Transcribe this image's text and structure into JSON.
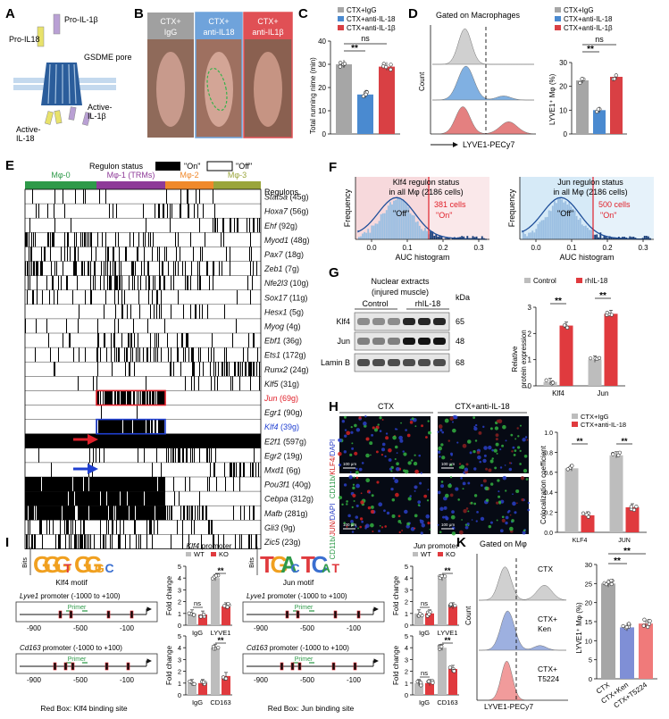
{
  "panel_letters": [
    "A",
    "B",
    "C",
    "D",
    "E",
    "F",
    "G",
    "H",
    "I",
    "J",
    "K"
  ],
  "colors": {
    "igg": "#a6a6a6",
    "anti": "#4a8ad0",
    "beta": "#d94044",
    "wt": "#bdbdbd",
    "ko": "#e03a3e",
    "green": "#2e9a49",
    "purple": "#8e3a98",
    "orange": "#f0892b",
    "olive": "#9aa53b",
    "pink_bg": "#f7d9dc",
    "blue_bg": "#d6eaf7"
  },
  "panel_a": {
    "pro_il18": "Pro-IL18",
    "pro_il1b": "Pro-IL-1β",
    "pore": "GSDME pore",
    "act_il18_1": "Active-",
    "act_il18_2": "IL-18",
    "act_il1b_1": "Active-",
    "act_il1b_2": "IL-1β"
  },
  "panel_b": {
    "labels": [
      [
        "CTX+",
        "IgG"
      ],
      [
        "CTX+",
        "anti-IL18"
      ],
      [
        "CTX+",
        "anti-IL1β"
      ]
    ]
  },
  "panel_c": {
    "ylabel": "Total running nime (min)",
    "legend": [
      "CTX+IgG",
      "CTX+anti-IL-18",
      "CTX+anti-IL-1β"
    ],
    "sig": [
      "ns",
      "**"
    ],
    "chart_data": {
      "type": "bar",
      "categories": [
        "CTX+IgG",
        "CTX+anti-IL-18",
        "CTX+anti-IL-1β"
      ],
      "values": [
        30,
        17,
        29
      ],
      "ylim": [
        0,
        40
      ],
      "yticks": [
        0,
        10,
        20,
        30,
        40
      ]
    }
  },
  "panel_d": {
    "title": "Gated on Macrophages",
    "ylabel": "Count",
    "xlabel": "LYVE1-PECy7",
    "ylabel2": "LYVE1⁺ Mφ (%)",
    "legend": [
      "CTX+IgG",
      "CTX+anti-IL-18",
      "CTX+anti-IL-1β"
    ],
    "sig": [
      "ns",
      "**"
    ],
    "chart_data": {
      "type": "bar",
      "categories": [
        "CTX+IgG",
        "CTX+anti-IL-18",
        "CTX+anti-IL-1β"
      ],
      "values": [
        22.5,
        10,
        24
      ],
      "ylim": [
        0,
        30
      ],
      "yticks": [
        0,
        10,
        20,
        30
      ]
    }
  },
  "panel_e": {
    "status_title": "Regulon status",
    "on": "\"On\"",
    "off": "\"Off\"",
    "clusters": [
      "Mφ-0",
      "Mφ-1 (TRMs)",
      "Mφ-2",
      "Mφ-3"
    ],
    "regulons_label": "Regulons",
    "regulons": [
      {
        "gene": "Stat5a",
        "n": "(45g)"
      },
      {
        "gene": "Hoxa7",
        "n": "(56g)"
      },
      {
        "gene": "Ehf",
        "n": "(92g)"
      },
      {
        "gene": "Myod1",
        "n": "(48g)"
      },
      {
        "gene": "Pax7",
        "n": "(18g)"
      },
      {
        "gene": "Zeb1",
        "n": "(7g)"
      },
      {
        "gene": "Nfe2l3",
        "n": "(10g)"
      },
      {
        "gene": "Sox17",
        "n": "(11g)"
      },
      {
        "gene": "Hesx1",
        "n": "(5g)"
      },
      {
        "gene": "Myog",
        "n": "(4g)"
      },
      {
        "gene": "Ebf1",
        "n": "(36g)"
      },
      {
        "gene": "Ets1",
        "n": "(172g)"
      },
      {
        "gene": "Runx2",
        "n": "(24g)"
      },
      {
        "gene": "Klf5",
        "n": "(31g)"
      },
      {
        "gene": "Jun",
        "n": "(69g)"
      },
      {
        "gene": "Egr1",
        "n": "(90g)"
      },
      {
        "gene": "Klf4",
        "n": "(39g)"
      },
      {
        "gene": "E2f1",
        "n": "(597g)"
      },
      {
        "gene": "Egr2",
        "n": "(19g)"
      },
      {
        "gene": "Mxd1",
        "n": "(6g)"
      },
      {
        "gene": "Pou3f1",
        "n": "(40g)"
      },
      {
        "gene": "Cebpa",
        "n": "(312g)"
      },
      {
        "gene": "Mafb",
        "n": "(281g)"
      },
      {
        "gene": "Gli3",
        "n": "(9g)"
      },
      {
        "gene": "Zic5",
        "n": "(23g)"
      }
    ]
  },
  "panel_f": {
    "left": {
      "title1": "Klf4 regulon status",
      "title2": "in all Mφ (2186 cells)",
      "cells": "381 cells",
      "on": "\"On\"",
      "off": "\"Off\"",
      "threshold": 0.16
    },
    "right": {
      "title1": "Jun regulon status",
      "title2": "in all Mφ (2186 cells)",
      "cells": "500 cells",
      "on": "\"On\"",
      "off": "\"Off\"",
      "threshold": 0.16
    },
    "ylabel": "Frequency",
    "xlabel": "AUC histogram",
    "xticks": [
      "0.0",
      "0.1",
      "0.2",
      "0.3"
    ]
  },
  "panel_g": {
    "title1": "Nuclear extracts",
    "title2": "(injured muscle)",
    "group1": "Control",
    "group2": "rhIL-18",
    "kda": "kDa",
    "rows": [
      {
        "name": "Klf4",
        "kda": "65"
      },
      {
        "name": "Jun",
        "kda": "48"
      },
      {
        "name": "Lamin B",
        "kda": "68"
      }
    ],
    "legend": [
      "Control",
      "rhIL-18"
    ],
    "ylabel1": "Relative",
    "ylabel2": "protein expression",
    "sig": [
      "**",
      "**"
    ],
    "chart_data": {
      "type": "bar",
      "categories": [
        "Klf4",
        "Jun"
      ],
      "series": [
        {
          "name": "Control",
          "values": [
            0.15,
            1.0
          ]
        },
        {
          "name": "rhIL-18",
          "values": [
            2.3,
            2.75
          ]
        }
      ],
      "ylim": [
        0,
        3
      ],
      "yticks": [
        0,
        1,
        2,
        3
      ]
    }
  },
  "panel_h": {
    "col1": "CTX",
    "col2": "CTX+anti-IL-18",
    "row1": [
      "CD11b/",
      "KLF4/",
      "DAPI"
    ],
    "row2": [
      "CD11b/",
      "JUN/",
      "DAPI"
    ],
    "scale": "100 μm",
    "legend": [
      "CTX+IgG",
      "CTX+anti-IL-18"
    ],
    "ylabel": "Colocalization coefficient",
    "sig": [
      "**",
      "**"
    ],
    "chart_data": {
      "type": "bar",
      "categories": [
        "KLF4",
        "JUN"
      ],
      "series": [
        {
          "name": "CTX+IgG",
          "values": [
            0.64,
            0.77
          ]
        },
        {
          "name": "CTX+anti-IL-18",
          "values": [
            0.17,
            0.25
          ]
        }
      ],
      "ylim": [
        0,
        1.0
      ],
      "yticks": [
        "0.0",
        "0.2",
        "0.4",
        "0.6",
        "0.8",
        "1.0"
      ]
    }
  },
  "panel_i": {
    "motif": "Klf4 motif",
    "bits": "Bits",
    "logo": [
      "G",
      "G",
      "G",
      "T",
      "G",
      "G",
      "G",
      "C"
    ],
    "p1": "Lyve1 promoter (-1000 to +100)",
    "p2": "Cd163 promoter (-1000 to +100)",
    "primer": "Primer",
    "ticks": [
      "-900",
      "-500",
      "-100"
    ],
    "note": "Red Box: Klf4 binding site",
    "chart_title": "Klf4 promoter",
    "legend": [
      "WT",
      "KO"
    ],
    "ylabel": "Fold change",
    "chart_data": [
      {
        "type": "bar",
        "categories": [
          "IgG",
          "LYVE1"
        ],
        "series": [
          {
            "name": "WT",
            "values": [
              1,
              4
            ]
          },
          {
            "name": "KO",
            "values": [
              0.9,
              1.6
            ]
          }
        ],
        "ylim": [
          0,
          5
        ],
        "yticks": [
          0,
          1,
          2,
          3,
          4,
          5
        ],
        "sig": [
          "ns",
          "**"
        ]
      },
      {
        "type": "bar",
        "categories": [
          "IgG",
          "CD163"
        ],
        "series": [
          {
            "name": "WT",
            "values": [
              1,
              4
            ]
          },
          {
            "name": "KO",
            "values": [
              1,
              1.6
            ]
          }
        ],
        "ylim": [
          0,
          5
        ],
        "yticks": [
          0,
          1,
          2,
          3,
          4,
          5
        ],
        "sig": [
          "**"
        ]
      }
    ]
  },
  "panel_j": {
    "motif": "Jun motif",
    "bits": "Bits",
    "logo": [
      "T",
      "G",
      "A",
      "C",
      "T",
      "C",
      "A",
      "T"
    ],
    "p1": "Lyve1 promoter (-1000 to +100)",
    "p2": "Cd163 promoter (-1000 to +100)",
    "primer": "Primer",
    "ticks": [
      "-900",
      "-500",
      "-100"
    ],
    "note": "Red Box: Jun binding site",
    "chart_title": "Jun promoter",
    "legend": [
      "WT",
      "KO"
    ],
    "ylabel": "Fold change",
    "chart_data": [
      {
        "type": "bar",
        "categories": [
          "IgG",
          "LYVE1"
        ],
        "series": [
          {
            "name": "WT",
            "values": [
              1,
              4
            ]
          },
          {
            "name": "KO",
            "values": [
              1,
              1.6
            ]
          }
        ],
        "ylim": [
          0,
          5
        ],
        "yticks": [
          0,
          1,
          2,
          3,
          4,
          5
        ],
        "sig": [
          "ns",
          "**"
        ]
      },
      {
        "type": "bar",
        "categories": [
          "IgG",
          "CD163"
        ],
        "series": [
          {
            "name": "WT",
            "values": [
              1,
              4
            ]
          },
          {
            "name": "KO",
            "values": [
              1,
              2.2
            ]
          }
        ],
        "ylim": [
          0,
          5
        ],
        "yticks": [
          0,
          1,
          2,
          3,
          4,
          5
        ],
        "sig": [
          "ns",
          "**"
        ]
      }
    ]
  },
  "panel_k": {
    "title": "Gated on Mφ",
    "ylabel": "Count",
    "xlabel": "LYVE1-PECy7",
    "labels": [
      "CTX",
      "CTX+\nKen",
      "CTX+\nT5224"
    ],
    "ylabel2": "LYVE1⁺ Mφ (%)",
    "sig": [
      "**",
      "**"
    ],
    "chart_data": {
      "type": "bar",
      "categories": [
        "CTX",
        "CTX+Ken",
        "CTX+T5224"
      ],
      "values": [
        25,
        13.5,
        14.5
      ],
      "ylim": [
        0,
        30
      ],
      "yticks": [
        0,
        5,
        10,
        15,
        20,
        25,
        30
      ]
    }
  }
}
